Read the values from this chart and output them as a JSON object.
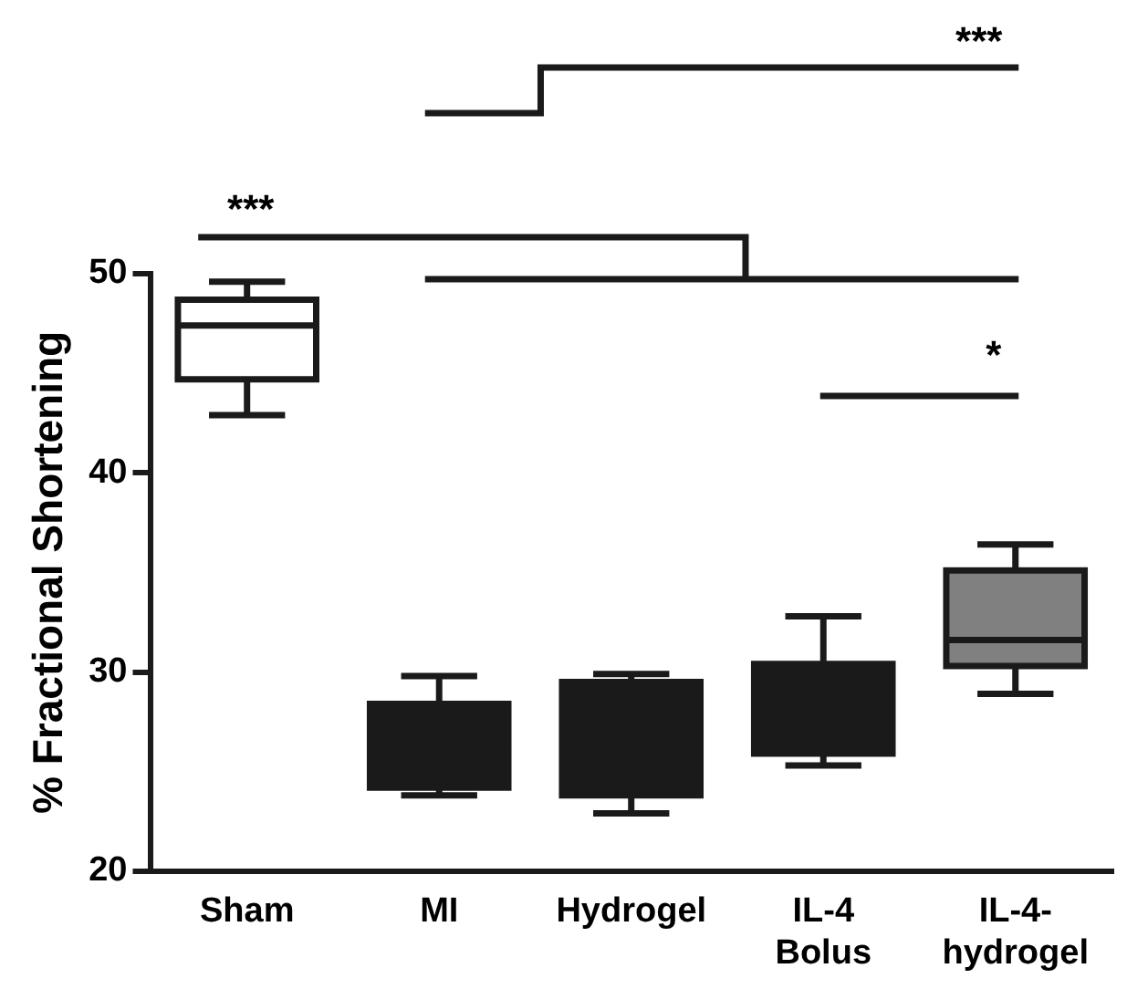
{
  "chart_data": {
    "type": "box",
    "ylabel": "% Fractional Shortening",
    "categories": [
      "Sham",
      "MI",
      "Hydrogel",
      "IL-4 Bolus",
      "IL-4-hydrogel"
    ],
    "colors": [
      "#ffffff",
      "#1a1a1a",
      "#1a1a1a",
      "#1a1a1a",
      "#808080"
    ],
    "boxes": [
      {
        "low": 42.9,
        "q1": 44.7,
        "median": 47.4,
        "q3": 48.7,
        "high": 49.6
      },
      {
        "low": 23.8,
        "q1": 24.2,
        "median": 26,
        "q3": 28.4,
        "high": 29.8
      },
      {
        "low": 22.9,
        "q1": 23.8,
        "median": 27,
        "q3": 29.5,
        "high": 29.9
      },
      {
        "low": 25.3,
        "q1": 25.9,
        "median": 28,
        "q3": 30.4,
        "high": 32.8
      },
      {
        "low": 28.9,
        "q1": 30.3,
        "median": 31.6,
        "q3": 35.1,
        "high": 36.4
      }
    ],
    "ylim": [
      20,
      50
    ],
    "yticks": [
      20,
      30,
      40,
      50
    ],
    "grid": false,
    "legend": false,
    "annotations": [
      "***",
      "***",
      "*"
    ]
  }
}
